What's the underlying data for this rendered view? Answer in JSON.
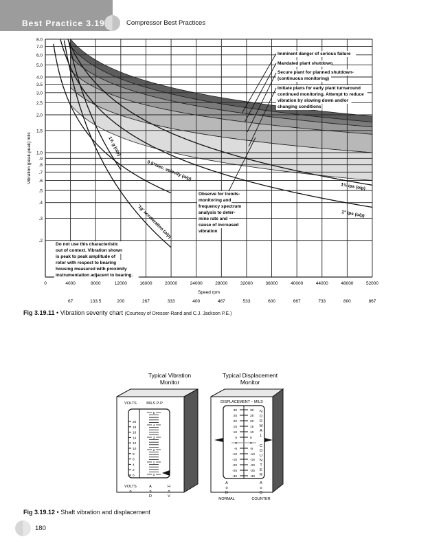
{
  "header": {
    "section": "Best Practice 3.19",
    "book_title": "Compressor Best Practices"
  },
  "figure1": {
    "label": "Fig 3.19.11",
    "bullet": "•",
    "caption": "Vibration severity chart",
    "credit": "(Courtesy of Dresser-Rand and C.J. Jackson P.E.)"
  },
  "chart_data": {
    "type": "line",
    "xlabel": "Speed rpm",
    "ylabel": "Vibration (peak-peak) mils",
    "xlim": [
      0,
      52000
    ],
    "ylim": [
      0.1,
      8.0
    ],
    "yscale": "log",
    "grid": true,
    "x_ticks": [
      "0",
      "4000",
      "8000",
      "12000",
      "16000",
      "20000",
      "24000",
      "28000",
      "32000",
      "36000",
      "40000",
      "44000",
      "48000",
      "52000"
    ],
    "x_secondary_ticks": [
      "67",
      "133.5",
      "200",
      "267",
      "333",
      "400",
      "467",
      "533",
      "600",
      "667",
      "733",
      "800",
      "867"
    ],
    "y_ticks": [
      "8.0",
      "7.0",
      "6.0",
      "5.0",
      "4.0",
      "3.5",
      "3.0",
      "2.5",
      "2.0",
      "1.5",
      "1.0",
      ".9",
      ".8",
      ".7",
      ".6",
      ".5",
      ".4",
      ".3",
      ".2"
    ],
    "zones": [
      {
        "label": "Imminent danger of serious failure",
        "upper": [
          [
            4000,
            8.0
          ],
          [
            52000,
            1.95
          ]
        ],
        "lower": [
          [
            4000,
            7.0
          ],
          [
            52000,
            1.75
          ]
        ],
        "color": "#5c5c5c"
      },
      {
        "label": "Mandated plant shutdown",
        "upper": [
          [
            4000,
            7.0
          ],
          [
            52000,
            1.75
          ]
        ],
        "lower": [
          [
            4000,
            5.8
          ],
          [
            52000,
            1.6
          ]
        ],
        "color": "#7a7a7a"
      },
      {
        "label": "Secure plant for planned shutdown-(continuous monitoring)",
        "upper": [
          [
            4000,
            5.8
          ],
          [
            52000,
            1.6
          ]
        ],
        "lower": [
          [
            4000,
            4.5
          ],
          [
            52000,
            1.4
          ]
        ],
        "color": "#999999"
      },
      {
        "label": "Initiate plans for early plant turnaround continued monitoring. Attempt to reduce vibration by slowing down and/or changing conditions",
        "upper": [
          [
            4000,
            4.5
          ],
          [
            52000,
            1.4
          ]
        ],
        "lower": [
          [
            4000,
            3.3
          ],
          [
            52000,
            1.0
          ]
        ],
        "color": "#b8b8b8"
      },
      {
        "label": "Observe for trends-monitoring and frequency spectrum analysis to deter-mine rate and cause of increased vibration",
        "upper": [
          [
            4000,
            3.3
          ],
          [
            52000,
            1.0
          ]
        ],
        "lower": [
          [
            4000,
            2.4
          ],
          [
            52000,
            0.6
          ]
        ],
        "color": "#dcdcdc"
      }
    ],
    "series": [
      {
        "name": "1½ g (o/p)",
        "kind": "acceleration",
        "g": 1.5,
        "x_range": [
          3600,
          12000
        ]
      },
      {
        "name": "'1g' acceleration (o/p)",
        "kind": "acceleration",
        "g": 1.0,
        "x_range": [
          2900,
          20000
        ]
      },
      {
        "name": "0.5\"/sec. velocity (o/p)",
        "kind": "velocity",
        "ips": 0.5,
        "x_range": [
          1300,
          20000
        ]
      },
      {
        "name": "1\" ips (o/p)",
        "kind": "velocity",
        "ips": 1.0,
        "x_range": [
          2400,
          52000
        ]
      },
      {
        "name": "1½ ips (o/p)",
        "kind": "velocity",
        "ips": 1.5,
        "x_range": [
          3600,
          52000
        ]
      }
    ],
    "annotations": {
      "imminent": [
        "Imminent danger of serious failure"
      ],
      "mandated": [
        "Mandated plant shutdown"
      ],
      "secure": [
        "Secure plant for planned shutdown-",
        "(continuous monitoring)"
      ],
      "initiate": [
        "Initiate plans for early plant turnaround",
        "continued monitoring. Attempt to reduce",
        "vibration by slowing down and/or",
        "changing conditions"
      ],
      "observe": [
        "Observe for trends-",
        "monitoring and",
        "frequency spectrum",
        "analysis to deter-",
        "mine rate and",
        "cause of increased",
        "vibration"
      ],
      "note": [
        "Do not use this characteristic",
        "out of context. Vibration shown",
        "is peak to peak amplitude of",
        "rotor with respect to bearing",
        "housing measured with proximity",
        "instrumentation adjacent to bearing."
      ]
    }
  },
  "figure2": {
    "label": "Fig 3.19.12",
    "bullet": "•",
    "caption": "Shaft vibration and displacement",
    "vibration_monitor": {
      "title": [
        "Typical Vibration",
        "Monitor"
      ],
      "volts_label": "VOLTS",
      "mils_label": "MILS P-P",
      "volts_scale": [
        "20",
        "18",
        "16",
        "14",
        "12",
        "10",
        "8",
        "6",
        "4",
        "2",
        "0"
      ],
      "mils_scale": [
        "5",
        "4",
        "3",
        "2",
        "1",
        "0"
      ],
      "bottom": {
        "volts": "VOLTS",
        "aod": [
          "A",
          "D"
        ],
        "hov": [
          "H",
          "V"
        ]
      }
    },
    "displacement_monitor": {
      "title": [
        "Typical Displacement",
        "Monitor"
      ],
      "heading": "DISPLACEMENT – MILS",
      "scale": [
        "30",
        "25",
        "20",
        "15",
        "10",
        "5",
        "0",
        "-5",
        "-10",
        "-15",
        "-20",
        "-25",
        "-30"
      ],
      "normal_vertical": "NORMAL",
      "counter_vertical": "COUNTER",
      "bottom": {
        "left": [
          "A",
          "D"
        ],
        "right": [
          "A",
          "D"
        ],
        "normal": "NORMAL",
        "counter": "COUNTER"
      }
    }
  },
  "page": {
    "number": "180"
  }
}
